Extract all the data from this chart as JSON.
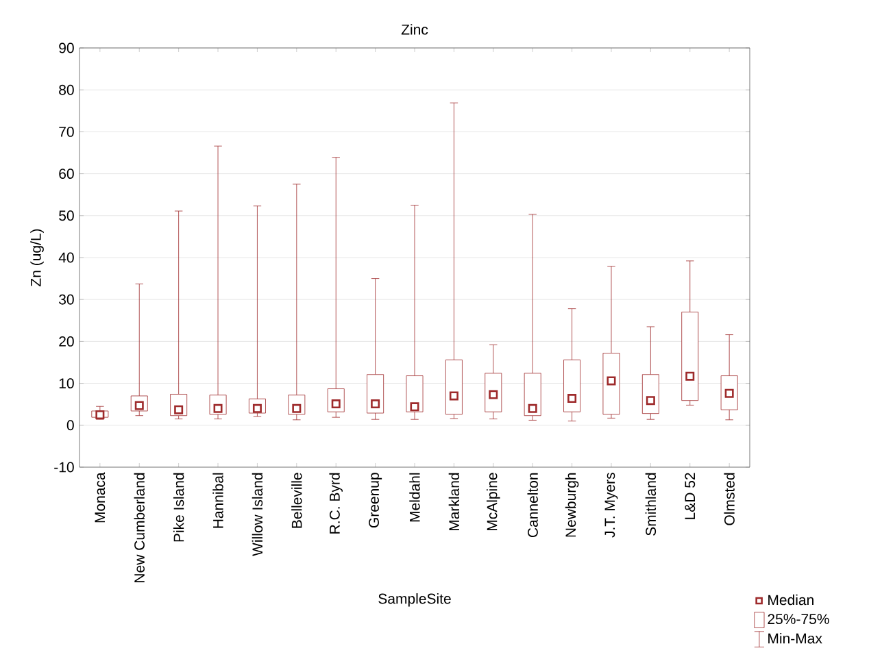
{
  "chart_data": {
    "type": "box",
    "title": "Zinc",
    "xlabel": "SampleSite",
    "ylabel": "Zn (ug/L)",
    "categories": [
      "Monaca",
      "New Cumberland",
      "Pike Island",
      "Hannibal",
      "Willow Island",
      "Belleville",
      "R.C. Byrd",
      "Greenup",
      "Meldahl",
      "Markland",
      "McAlpine",
      "Cannelton",
      "Newburgh",
      "J.T. Myers",
      "Smithland",
      "L&D 52",
      "Olmsted"
    ],
    "series": [
      {
        "color": "#9e2a2b",
        "marker": "square",
        "boxes": [
          {
            "low": 1.4,
            "q1": 1.9,
            "median": 2.5,
            "q3": 3.4,
            "high": 4.5
          },
          {
            "low": 2.3,
            "q1": 3.4,
            "median": 4.7,
            "q3": 7.0,
            "high": 33.7
          },
          {
            "low": 1.5,
            "q1": 2.3,
            "median": 3.7,
            "q3": 7.4,
            "high": 51.1
          },
          {
            "low": 1.5,
            "q1": 2.6,
            "median": 4.0,
            "q3": 7.2,
            "high": 66.6
          },
          {
            "low": 2.1,
            "q1": 2.9,
            "median": 4.0,
            "q3": 6.3,
            "high": 52.3
          },
          {
            "low": 1.3,
            "q1": 2.6,
            "median": 4.0,
            "q3": 7.2,
            "high": 57.5
          },
          {
            "low": 1.9,
            "q1": 3.2,
            "median": 5.1,
            "q3": 8.7,
            "high": 63.9
          },
          {
            "low": 1.4,
            "q1": 2.9,
            "median": 5.1,
            "q3": 12.1,
            "high": 35.0
          },
          {
            "low": 1.4,
            "q1": 3.2,
            "median": 4.4,
            "q3": 11.8,
            "high": 52.5
          },
          {
            "low": 1.6,
            "q1": 2.6,
            "median": 7.0,
            "q3": 15.6,
            "high": 76.9
          },
          {
            "low": 1.5,
            "q1": 3.2,
            "median": 7.3,
            "q3": 12.4,
            "high": 19.2
          },
          {
            "low": 1.2,
            "q1": 2.3,
            "median": 4.0,
            "q3": 12.4,
            "high": 50.3
          },
          {
            "low": 1.0,
            "q1": 3.2,
            "median": 6.4,
            "q3": 15.6,
            "high": 27.8
          },
          {
            "low": 1.7,
            "q1": 2.6,
            "median": 10.6,
            "q3": 17.2,
            "high": 37.9
          },
          {
            "low": 1.4,
            "q1": 2.8,
            "median": 5.9,
            "q3": 12.1,
            "high": 23.5
          },
          {
            "low": 4.8,
            "q1": 5.9,
            "median": 11.7,
            "q3": 27.0,
            "high": 39.2
          },
          {
            "low": 1.3,
            "q1": 3.7,
            "median": 7.6,
            "q3": 11.8,
            "high": 21.6
          }
        ]
      }
    ],
    "ylim": [
      -10,
      90
    ],
    "yticks": [
      -10,
      0,
      10,
      20,
      30,
      40,
      50,
      60,
      70,
      80,
      90
    ],
    "grid": "y",
    "annotations": [
      "Median",
      "25%-75%",
      "Min-Max"
    ]
  }
}
